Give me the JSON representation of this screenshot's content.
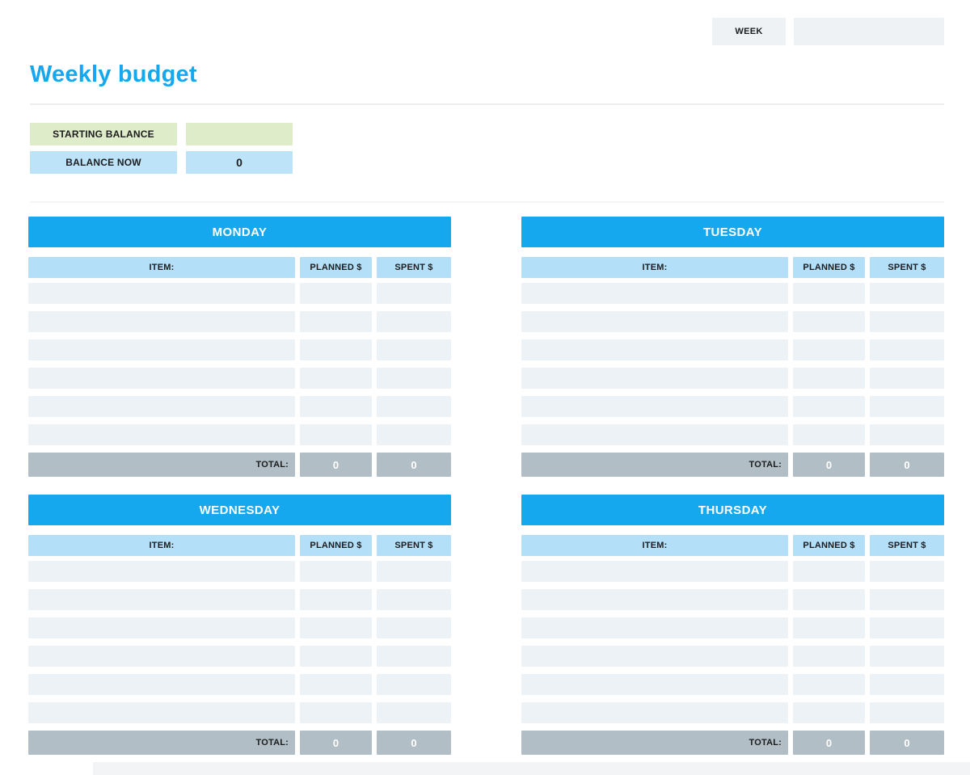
{
  "header": {
    "title": "Weekly budget",
    "week_label": "WEEK",
    "week_value": ""
  },
  "balance": {
    "starting_label": "STARTING BALANCE",
    "starting_value": "",
    "now_label": "BALANCE NOW",
    "now_value": "0"
  },
  "table": {
    "item_header": "ITEM:",
    "planned_header": "PLANNED $",
    "spent_header": "SPENT $",
    "total_label": "TOTAL:",
    "rows_per_day": 6
  },
  "days": [
    {
      "name": "MONDAY",
      "total_planned": "0",
      "total_spent": "0"
    },
    {
      "name": "TUESDAY",
      "total_planned": "0",
      "total_spent": "0"
    },
    {
      "name": "WEDNESDAY",
      "total_planned": "0",
      "total_spent": "0"
    },
    {
      "name": "THURSDAY",
      "total_planned": "0",
      "total_spent": "0"
    }
  ],
  "colors": {
    "accent_blue": "#16a8ee",
    "column_header_blue": "#b3e0f8",
    "balance_blue": "#bde3f9",
    "starting_green": "#dfecca",
    "row_gray": "#edf2f6",
    "total_gray": "#b1bec6",
    "week_box_gray": "#eef2f5"
  }
}
